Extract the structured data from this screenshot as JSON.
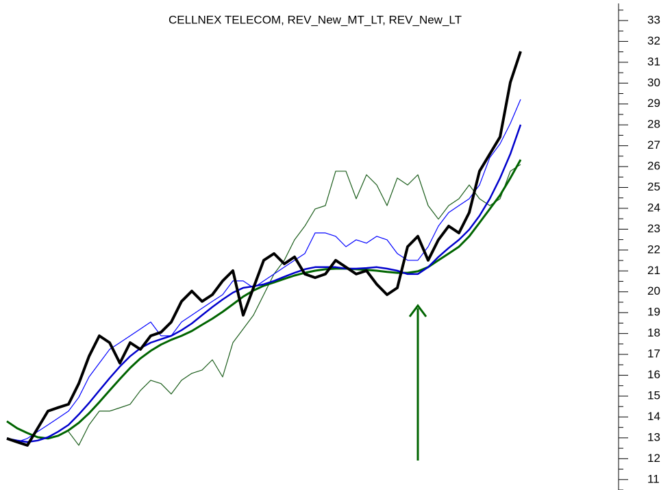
{
  "chart_data": {
    "type": "line",
    "title": "CELLNEX TELECOM, REV_New_MT_LT, REV_New_LT",
    "ylim": [
      10.5,
      33.8
    ],
    "yticks": [
      11,
      12,
      13,
      14,
      15,
      16,
      17,
      18,
      19,
      20,
      21,
      22,
      23,
      24,
      25,
      26,
      27,
      28,
      29,
      30,
      31,
      32,
      33
    ],
    "yminorticks": [
      10.5,
      11.5,
      12.5,
      13.5,
      14.5,
      15.5,
      16.5,
      17.5,
      18.5,
      19.5,
      20.5,
      21.5,
      22.5,
      23.5,
      24.5,
      25.5,
      26.5,
      27.5,
      28.5,
      29.5,
      30.5,
      31.5,
      32.5,
      33.5
    ],
    "series": [
      {
        "color": "#1a5c1a",
        "width": 1.2,
        "values": [
          null,
          null,
          null,
          null,
          null,
          null,
          13.3,
          12.64,
          13.62,
          14.28,
          14.28,
          14.44,
          14.61,
          15.27,
          15.76,
          15.6,
          15.1,
          15.76,
          16.09,
          16.25,
          16.74,
          15.92,
          17.56,
          18.22,
          18.88,
          19.86,
          20.85,
          21.51,
          22.49,
          23.15,
          23.97,
          24.13,
          25.78,
          25.78,
          24.46,
          25.61,
          25.12,
          24.13,
          25.45,
          25.12,
          25.61,
          24.13,
          23.48,
          24.13,
          24.46,
          25.12,
          24.46,
          24.13,
          24.46,
          25.78,
          26.1
        ]
      },
      {
        "color": "#0000ff",
        "width": 1.2,
        "values": [
          12.97,
          12.8,
          12.97,
          13.3,
          13.62,
          13.95,
          14.28,
          14.94,
          15.92,
          16.58,
          17.24,
          17.56,
          17.89,
          18.22,
          18.55,
          17.89,
          17.89,
          18.55,
          18.88,
          19.21,
          19.54,
          19.86,
          20.52,
          20.52,
          20.19,
          20.52,
          20.85,
          21.18,
          21.51,
          21.83,
          22.82,
          22.82,
          22.66,
          22.16,
          22.49,
          22.33,
          22.66,
          22.49,
          21.83,
          21.51,
          21.51,
          22.16,
          23.15,
          23.8,
          24.13,
          24.46,
          25.12,
          26.43,
          27.09,
          28.07,
          29.22
        ]
      },
      {
        "color": "#006400",
        "width": 3,
        "values": [
          13.79,
          13.46,
          13.23,
          13.03,
          12.97,
          13.1,
          13.36,
          13.72,
          14.18,
          14.71,
          15.27,
          15.82,
          16.35,
          16.81,
          17.17,
          17.47,
          17.7,
          17.89,
          18.12,
          18.42,
          18.71,
          19.04,
          19.4,
          19.77,
          20.06,
          20.29,
          20.45,
          20.62,
          20.78,
          20.91,
          21.01,
          21.08,
          21.11,
          21.11,
          21.08,
          21.05,
          21.01,
          20.95,
          20.91,
          20.91,
          20.98,
          21.18,
          21.51,
          21.83,
          22.16,
          22.66,
          23.31,
          23.97,
          24.63,
          25.45,
          26.33
        ]
      },
      {
        "color": "#0000cc",
        "width": 2.5,
        "values": [
          12.97,
          12.87,
          12.8,
          12.87,
          13.03,
          13.3,
          13.62,
          14.12,
          14.67,
          15.27,
          15.86,
          16.42,
          16.91,
          17.3,
          17.56,
          17.73,
          17.89,
          18.16,
          18.48,
          18.88,
          19.27,
          19.63,
          19.96,
          20.19,
          20.26,
          20.36,
          20.52,
          20.72,
          20.91,
          21.08,
          21.18,
          21.18,
          21.18,
          21.11,
          21.11,
          21.14,
          21.18,
          21.11,
          21.01,
          20.85,
          20.85,
          21.18,
          21.67,
          22.1,
          22.49,
          22.98,
          23.64,
          24.46,
          25.45,
          26.6,
          28.01
        ]
      },
      {
        "color": "#000000",
        "width": 4,
        "values": [
          12.97,
          12.8,
          12.64,
          13.46,
          14.28,
          14.45,
          14.61,
          15.6,
          16.91,
          17.89,
          17.56,
          16.58,
          17.56,
          17.24,
          17.89,
          18.06,
          18.55,
          19.54,
          20.03,
          19.54,
          19.86,
          20.52,
          21.01,
          18.88,
          20.19,
          21.51,
          21.83,
          21.34,
          21.67,
          20.85,
          20.68,
          20.85,
          21.51,
          21.18,
          20.85,
          21.01,
          20.36,
          19.86,
          20.19,
          22.16,
          22.66,
          21.51,
          22.49,
          23.15,
          22.82,
          23.8,
          25.78,
          26.6,
          27.42,
          30.04,
          31.52
        ]
      }
    ]
  }
}
